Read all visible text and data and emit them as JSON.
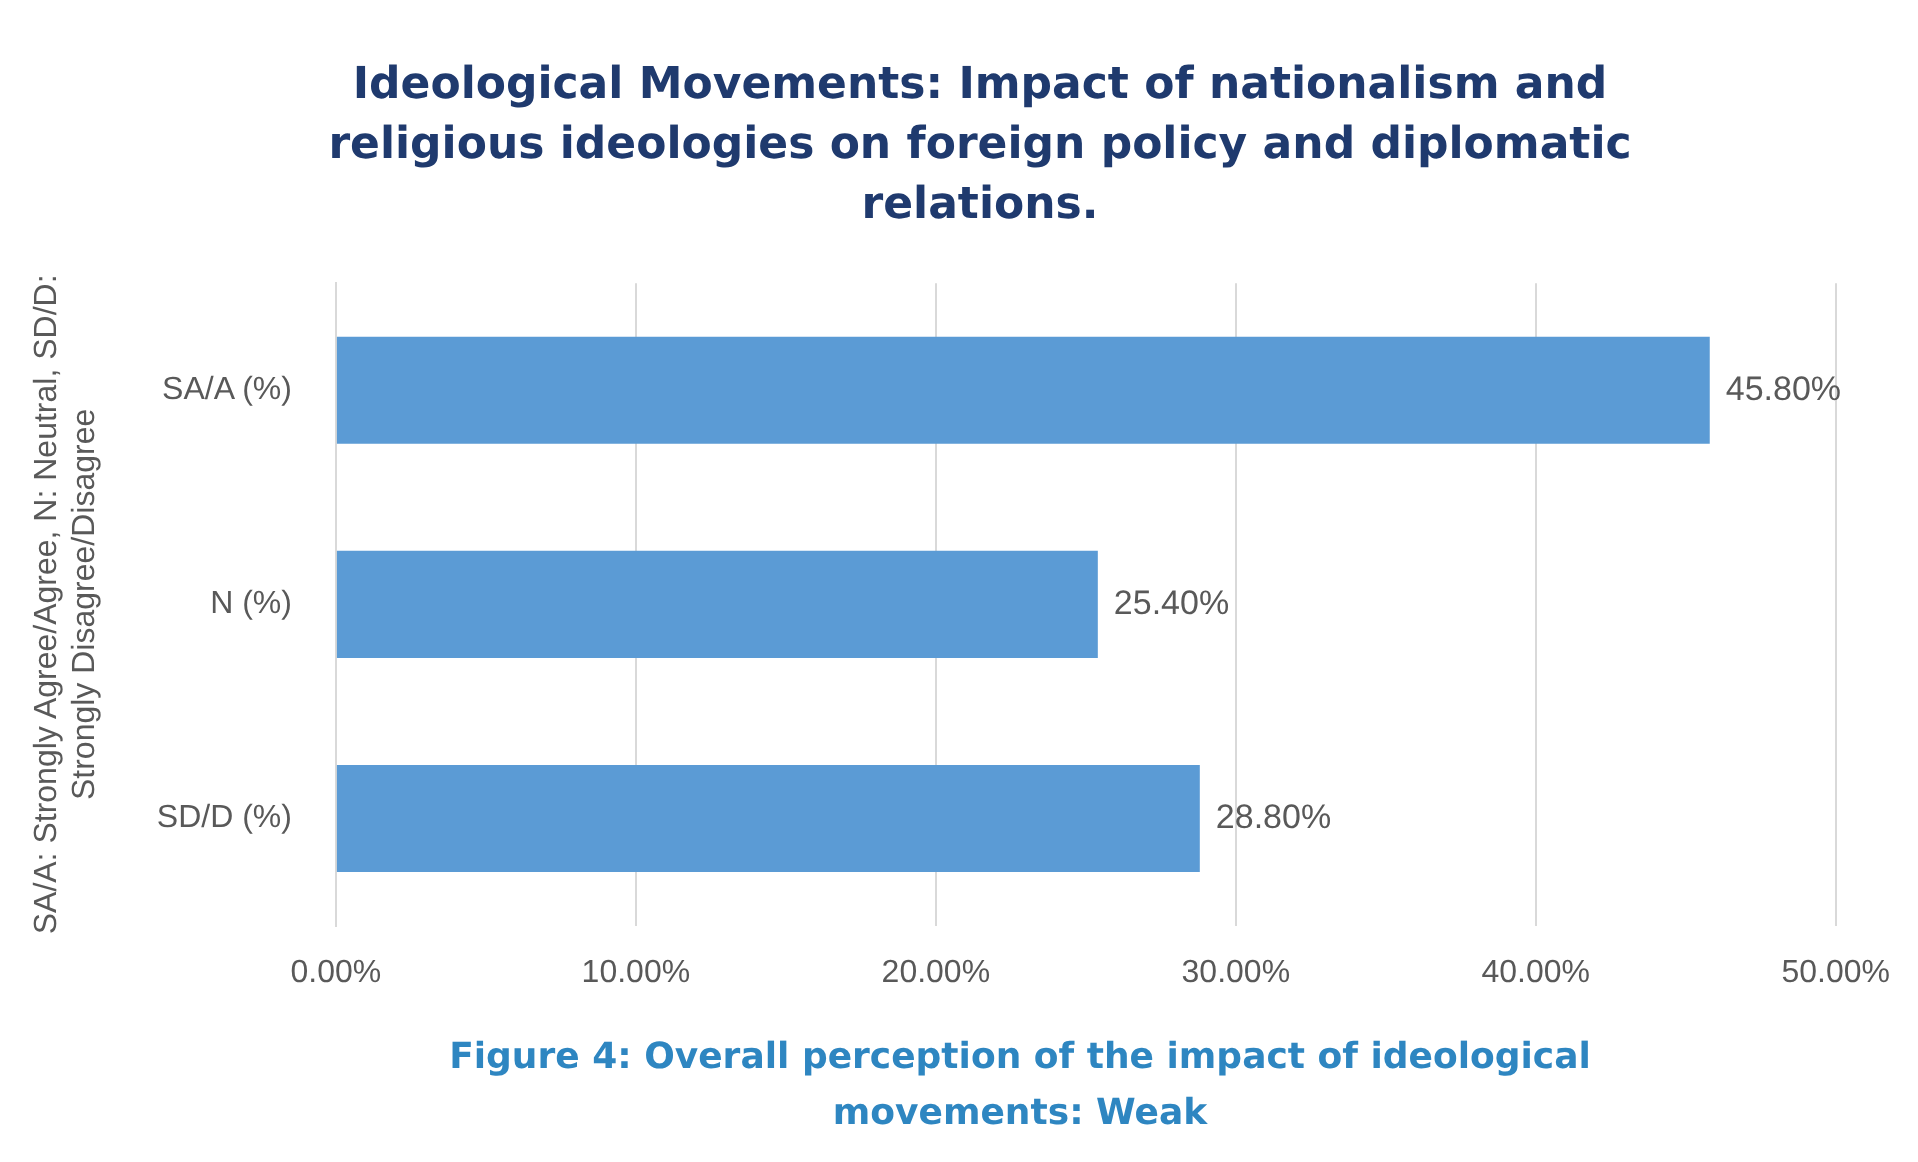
{
  "chart_data": {
    "type": "bar",
    "orientation": "horizontal",
    "title": "Ideological Movements: Impact of nationalism and religious ideologies on foreign policy and diplomatic relations.",
    "ylabel": "SA/A: Strongly Agree/Agree, N: Neutral, SD/D: Strongly Disagree/Disagree",
    "categories": [
      "SA/A (%)",
      "N (%)",
      "SD/D (%)"
    ],
    "values": [
      45.8,
      25.4,
      28.8
    ],
    "value_labels": [
      "45.80%",
      "25.40%",
      "28.80%"
    ],
    "color": "#5b9bd5",
    "xlim": [
      0,
      50
    ],
    "xticks": [
      {
        "value": 0,
        "label": "0.00%"
      },
      {
        "value": 10,
        "label": "10.00%"
      },
      {
        "value": 20,
        "label": "20.00%"
      },
      {
        "value": 30,
        "label": "30.00%"
      },
      {
        "value": 40,
        "label": "40.00%"
      },
      {
        "value": 50,
        "label": "50.00%"
      }
    ],
    "grid": "x",
    "legend": false,
    "annotations": [
      "Figure 4: Overall perception of the impact of ideological movements: Weak"
    ]
  }
}
